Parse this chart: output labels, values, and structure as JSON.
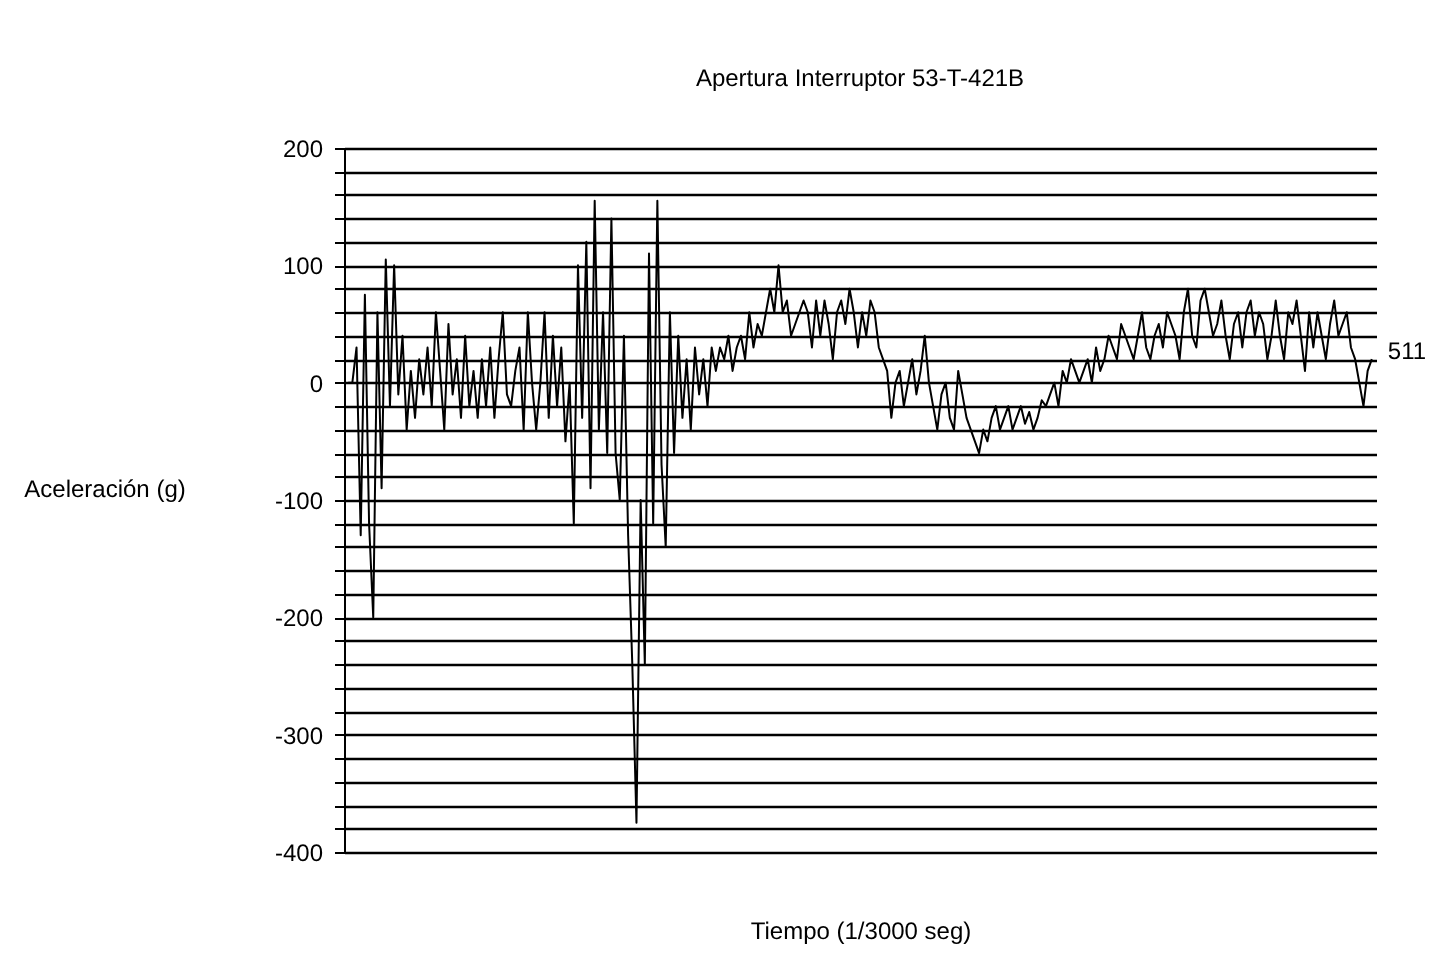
{
  "chart_data": {
    "type": "line",
    "title": "Apertura Interruptor 53-T-421B",
    "xlabel": "Tiempo (1/3000 seg)",
    "ylabel": "Aceleración (g)",
    "annotations": [
      "511"
    ],
    "categories": [
      null,
      null,
      null,
      null,
      null,
      null,
      null,
      null,
      null,
      null,
      null,
      null,
      null,
      null,
      null,
      null,
      null,
      null,
      null,
      null,
      null,
      null,
      null,
      null,
      null,
      null,
      null,
      null,
      null,
      null,
      null,
      null,
      null,
      null,
      null,
      null,
      null,
      null,
      null,
      null,
      null,
      null,
      null,
      null,
      null,
      null,
      null,
      null,
      null,
      null,
      null,
      null,
      null,
      null,
      null,
      null,
      null,
      null,
      null,
      null,
      null,
      null,
      null,
      null,
      null,
      null,
      null,
      null,
      null,
      null,
      null,
      null,
      null,
      null,
      null,
      null,
      null,
      null,
      null,
      null,
      null,
      null,
      null,
      null,
      null,
      null,
      null,
      null,
      null,
      null,
      null,
      null,
      null,
      null,
      null,
      null,
      null,
      null,
      null,
      null,
      null,
      null,
      null,
      null,
      null,
      null,
      null,
      null,
      null,
      null,
      null,
      null,
      null,
      null,
      null,
      null,
      null,
      null,
      null,
      null,
      null,
      null,
      null,
      null,
      null,
      null,
      null,
      null,
      null,
      null,
      null,
      null,
      null,
      null,
      null,
      null,
      null,
      null,
      null,
      null,
      null,
      null,
      null,
      null,
      null,
      null,
      null,
      null,
      null,
      null,
      null,
      null,
      null,
      null,
      null,
      null,
      null,
      null,
      null,
      null,
      null,
      null,
      null,
      null,
      null,
      null,
      null,
      null,
      null,
      null,
      null,
      null,
      null,
      null,
      null,
      null,
      null,
      null,
      null,
      null,
      null,
      null,
      null,
      null,
      null,
      null,
      null,
      null,
      null,
      null,
      null,
      null,
      null,
      null,
      null,
      null,
      null,
      null,
      null,
      null,
      null,
      null,
      null,
      null,
      null,
      null,
      null,
      null,
      null,
      null,
      null,
      null,
      null,
      null,
      null,
      null,
      null,
      null,
      null,
      null,
      null,
      null,
      null,
      null,
      null,
      null,
      null,
      null,
      null,
      null,
      null,
      null,
      null,
      null,
      null,
      null,
      null,
      null,
      null,
      null,
      null,
      null,
      null,
      null,
      null,
      null
    ],
    "series": [
      {
        "color": "#000000",
        "values": [
          0,
          0,
          30,
          -130,
          75,
          -120,
          -200,
          60,
          -90,
          105,
          -20,
          100,
          -10,
          40,
          -40,
          10,
          -30,
          20,
          -10,
          30,
          -20,
          60,
          10,
          -40,
          50,
          -10,
          20,
          -30,
          40,
          -20,
          10,
          -30,
          20,
          -20,
          30,
          -30,
          20,
          60,
          -10,
          -20,
          10,
          30,
          -40,
          60,
          0,
          -40,
          0,
          60,
          -30,
          40,
          -20,
          30,
          -50,
          0,
          -120,
          100,
          -30,
          120,
          -90,
          155,
          -40,
          60,
          -60,
          140,
          -60,
          -100,
          40,
          -130,
          -240,
          -375,
          -100,
          -240,
          110,
          -120,
          155,
          -70,
          -140,
          60,
          -60,
          40,
          -30,
          20,
          -40,
          30,
          -10,
          20,
          -20,
          30,
          10,
          30,
          20,
          40,
          10,
          30,
          40,
          20,
          60,
          30,
          50,
          40,
          60,
          80,
          60,
          100,
          60,
          70,
          40,
          50,
          60,
          70,
          60,
          30,
          70,
          40,
          70,
          50,
          20,
          60,
          70,
          50,
          80,
          60,
          30,
          60,
          40,
          70,
          60,
          30,
          20,
          10,
          -30,
          0,
          10,
          -20,
          0,
          20,
          -10,
          10,
          40,
          0,
          -20,
          -40,
          -10,
          0,
          -30,
          -40,
          10,
          -10,
          -30,
          -40,
          -50,
          -60,
          -40,
          -50,
          -30,
          -20,
          -40,
          -30,
          -20,
          -40,
          -30,
          -20,
          -35,
          -25,
          -40,
          -30,
          -15,
          -20,
          -10,
          0,
          -20,
          10,
          0,
          20,
          10,
          0,
          10,
          20,
          0,
          30,
          10,
          20,
          40,
          30,
          20,
          50,
          40,
          30,
          20,
          40,
          60,
          30,
          20,
          40,
          50,
          30,
          60,
          50,
          40,
          20,
          60,
          80,
          40,
          30,
          70,
          80,
          60,
          40,
          50,
          70,
          40,
          20,
          50,
          60,
          30,
          60,
          70,
          40,
          60,
          50,
          20,
          40,
          70,
          40,
          20,
          60,
          50,
          70,
          40,
          10,
          60,
          30,
          60,
          40,
          20,
          50,
          70,
          40,
          50,
          60,
          30,
          20,
          0,
          -20,
          10,
          20
        ]
      }
    ],
    "ylim": [
      -400,
      200
    ],
    "yticks": [
      200,
      {
        "value": 180,
        "label": null
      },
      {
        "value": 160,
        "label": null
      },
      {
        "value": 140,
        "label": null
      },
      {
        "value": 120,
        "label": null
      },
      100,
      {
        "value": 80,
        "label": null
      },
      {
        "value": 60,
        "label": null
      },
      {
        "value": 40,
        "label": null
      },
      {
        "value": 20,
        "label": null
      },
      0,
      {
        "value": -20,
        "label": null
      },
      {
        "value": -40,
        "label": null
      },
      {
        "value": -60,
        "label": null
      },
      {
        "value": -80,
        "label": null
      },
      -100,
      {
        "value": -120,
        "label": null
      },
      {
        "value": -140,
        "label": null
      },
      {
        "value": -160,
        "label": null
      },
      {
        "value": -180,
        "label": null
      },
      -200,
      {
        "value": -220,
        "label": null
      },
      {
        "value": -240,
        "label": null
      },
      {
        "value": -260,
        "label": null
      },
      {
        "value": -280,
        "label": null
      },
      -300,
      {
        "value": -320,
        "label": null
      },
      {
        "value": -340,
        "label": null
      },
      {
        "value": -360,
        "label": null
      },
      {
        "value": -380,
        "label": null
      },
      -400
    ],
    "grid": "y",
    "marker": "none",
    "line_style": "solid",
    "tick_labels": "y"
  }
}
